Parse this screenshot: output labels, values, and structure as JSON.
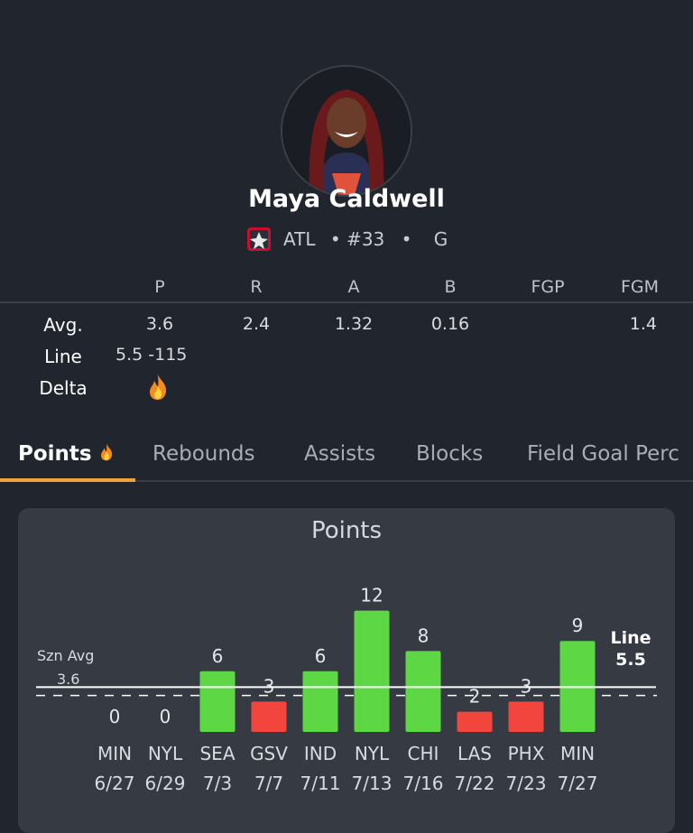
{
  "player": {
    "name": "Maya Caldwell",
    "team": "ATL",
    "number": "• #33",
    "position": "G",
    "separator": "•"
  },
  "stats": {
    "headers": [
      "P",
      "R",
      "A",
      "B",
      "FGP",
      "FGM"
    ],
    "avg_label": "Avg.",
    "avg_values": [
      "3.6",
      "2.4",
      "1.32",
      "0.16",
      "",
      "1.4"
    ],
    "line_label": "Line",
    "line_value": "5.5 -115",
    "delta_label": "Delta",
    "delta_icon": "fire-icon"
  },
  "tabs": [
    {
      "label": "Points",
      "active": true,
      "icon": "fire-icon"
    },
    {
      "label": "Rebounds",
      "active": false
    },
    {
      "label": "Assists",
      "active": false
    },
    {
      "label": "Blocks",
      "active": false
    },
    {
      "label": "Field Goal Perc",
      "active": false
    }
  ],
  "chart_data": {
    "type": "bar",
    "title": "Points",
    "categories": [
      "MIN 6/27",
      "NYL 6/29",
      "SEA 7/3",
      "GSV 7/7",
      "IND 7/11",
      "NYL 7/13",
      "CHI 7/16",
      "LAS 7/22",
      "PHX 7/23",
      "MIN 7/27"
    ],
    "opponents": [
      "MIN",
      "NYL",
      "SEA",
      "GSV",
      "IND",
      "NYL",
      "CHI",
      "LAS",
      "PHX",
      "MIN"
    ],
    "dates": [
      "6/27",
      "6/29",
      "7/3",
      "7/7",
      "7/11",
      "7/13",
      "7/16",
      "7/22",
      "7/23",
      "7/27"
    ],
    "values": [
      0,
      0,
      6,
      3,
      6,
      12,
      8,
      2,
      3,
      9
    ],
    "season_avg": 3.6,
    "season_avg_label": "Szn Avg",
    "line": 5.5,
    "line_label": "Line",
    "colors": {
      "over": "#5dd844",
      "under": "#f2453d"
    }
  }
}
